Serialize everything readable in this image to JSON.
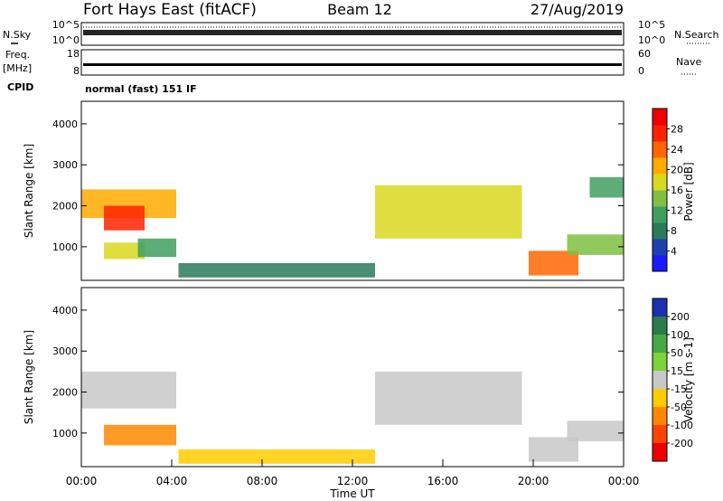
{
  "header": {
    "station": "Fort Hays East (fitACF)",
    "beam": "Beam 12",
    "date": "27/Aug/2019"
  },
  "noise_panel": {
    "left_label": "N.Sky",
    "right_label": "N.Search",
    "ticks": [
      "10^5",
      "10^0"
    ]
  },
  "freq_panel": {
    "left_label_1": "Freq.",
    "left_label_2": "[MHz]",
    "left_ticks": [
      "18",
      "8"
    ],
    "right_label": "Nave",
    "right_ticks": [
      "60",
      "0"
    ]
  },
  "cpid": {
    "label": "CPID",
    "value": "normal (fast) 151 IF"
  },
  "chart_data": [
    {
      "type": "heatmap",
      "name": "power",
      "ylabel": "Slant Range [km]",
      "y_ticks": [
        "4000",
        "3000",
        "2000",
        "1000"
      ],
      "y_tick_values": [
        4000,
        3000,
        2000,
        1000
      ],
      "ylim": [
        180,
        4550
      ],
      "colorbar_label": "Power [dB]",
      "colorbar_ticks": [
        "28",
        "24",
        "20",
        "16",
        "12",
        "8",
        "4"
      ],
      "colorbar_tick_values": [
        28,
        24,
        20,
        16,
        12,
        8,
        4
      ],
      "colorbar_range": [
        0,
        32
      ],
      "colorbar_colors": [
        "#1a1aff",
        "#1f3fb0",
        "#2a7a5c",
        "#3f9f5f",
        "#7fc040",
        "#d8d820",
        "#ffaa00",
        "#ff6600",
        "#ff2200",
        "#ee0000"
      ],
      "regions": [
        {
          "t": [
            0.0,
            4.2
          ],
          "r": [
            1700,
            2400
          ],
          "value": 20
        },
        {
          "t": [
            1.0,
            2.8
          ],
          "r": [
            1400,
            2000
          ],
          "value": 26
        },
        {
          "t": [
            1.0,
            2.8
          ],
          "r": [
            700,
            1100
          ],
          "value": 18
        },
        {
          "t": [
            2.5,
            4.2
          ],
          "r": [
            750,
            1200
          ],
          "value": 12
        },
        {
          "t": [
            4.3,
            13.0
          ],
          "r": [
            250,
            600
          ],
          "value": 8
        },
        {
          "t": [
            13.0,
            19.5
          ],
          "r": [
            1200,
            2500
          ],
          "value": 16
        },
        {
          "t": [
            19.8,
            22.0
          ],
          "r": [
            300,
            900
          ],
          "value": 24
        },
        {
          "t": [
            21.5,
            24.0
          ],
          "r": [
            800,
            1300
          ],
          "value": 14
        },
        {
          "t": [
            22.5,
            24.0
          ],
          "r": [
            2200,
            2700
          ],
          "value": 12
        }
      ]
    },
    {
      "type": "heatmap",
      "name": "velocity",
      "ylabel": "Slant Range [km]",
      "xlabel": "Time UT",
      "x_ticks": [
        "00:00",
        "04:00",
        "08:00",
        "12:00",
        "16:00",
        "20:00",
        "00:00"
      ],
      "x_tick_values": [
        0,
        4,
        8,
        12,
        16,
        20,
        24
      ],
      "xlim": [
        0,
        24
      ],
      "y_ticks": [
        "4000",
        "3000",
        "2000",
        "1000"
      ],
      "y_tick_values": [
        4000,
        3000,
        2000,
        1000
      ],
      "ylim": [
        180,
        4550
      ],
      "colorbar_label": "Velocity [m s-1]",
      "colorbar_ticks": [
        "200",
        "100",
        "50",
        "15",
        "-15",
        "-50",
        "-100",
        "-200"
      ],
      "colorbar_colors": [
        "#1a30b0",
        "#2d7a4a",
        "#48a848",
        "#7ed23a",
        "#c8c8c8",
        "#ffcc00",
        "#ff8800",
        "#ff4400",
        "#ee0000"
      ],
      "regions": [
        {
          "t": [
            0.0,
            4.2
          ],
          "r": [
            1600,
            2500
          ],
          "value": -10
        },
        {
          "t": [
            1.0,
            4.2
          ],
          "r": [
            700,
            1200
          ],
          "value": -60
        },
        {
          "t": [
            4.3,
            13.0
          ],
          "r": [
            250,
            600
          ],
          "value": -50
        },
        {
          "t": [
            13.0,
            19.5
          ],
          "r": [
            1200,
            2500
          ],
          "value": -10
        },
        {
          "t": [
            19.8,
            22.0
          ],
          "r": [
            300,
            900
          ],
          "value": -10
        },
        {
          "t": [
            21.5,
            24.0
          ],
          "r": [
            800,
            1300
          ],
          "value": -10
        }
      ]
    }
  ]
}
